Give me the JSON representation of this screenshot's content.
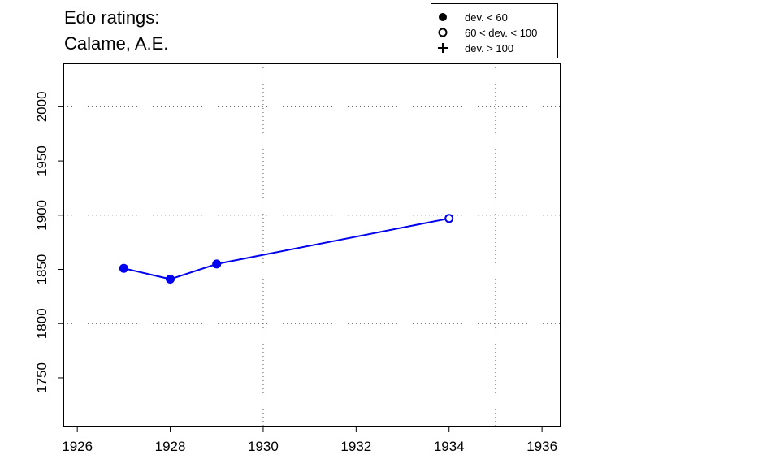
{
  "chart_data": {
    "type": "line",
    "title_line1": "Edo ratings:",
    "title_line2": "Calame, A.E.",
    "xlabel": "",
    "ylabel": "",
    "xlim": [
      1925.7,
      1936.4
    ],
    "ylim": [
      1705,
      2040
    ],
    "x_ticks": [
      1926,
      1928,
      1930,
      1932,
      1934,
      1936
    ],
    "y_ticks": [
      1750,
      1800,
      1850,
      1900,
      1950,
      2000
    ],
    "x_grid": [
      1930,
      1935
    ],
    "y_grid": [
      1800,
      1900,
      2000
    ],
    "series": [
      {
        "color": "#0000ee",
        "points": [
          {
            "x": 1927,
            "y": 1851,
            "marker": "filled"
          },
          {
            "x": 1928,
            "y": 1841,
            "marker": "filled"
          },
          {
            "x": 1929,
            "y": 1855,
            "marker": "filled"
          },
          {
            "x": 1934,
            "y": 1897,
            "marker": "open"
          }
        ]
      }
    ],
    "legend": {
      "position": "top-right",
      "items": [
        {
          "symbol": "filled-circle",
          "label": "dev. < 60"
        },
        {
          "symbol": "open-circle",
          "label": "60 < dev. < 100"
        },
        {
          "symbol": "plus",
          "label": "dev. > 100"
        }
      ]
    }
  }
}
